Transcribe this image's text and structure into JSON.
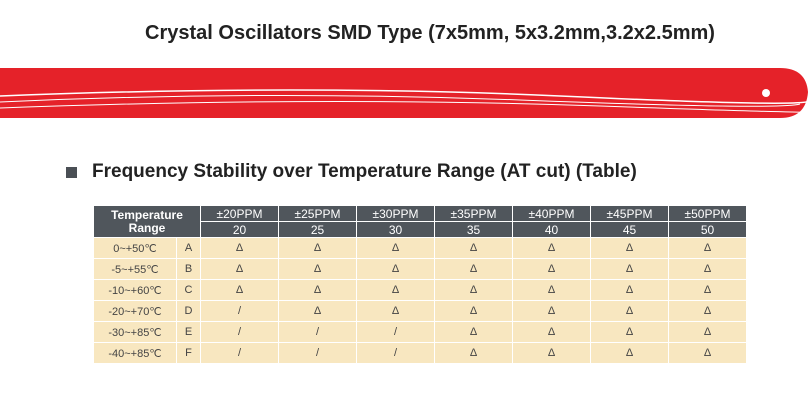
{
  "header": {
    "title": "Crystal Oscillators SMD Type (7x5mm, 5x3.2mm,3.2x2.5mm)"
  },
  "section": {
    "title": "Frequency Stability over Temperature Range (AT cut) (Table)"
  },
  "table": {
    "corner": "Temperature Range",
    "columns": [
      {
        "label": "±20PPM",
        "value": "20"
      },
      {
        "label": "±25PPM",
        "value": "25"
      },
      {
        "label": "±30PPM",
        "value": "30"
      },
      {
        "label": "±35PPM",
        "value": "35"
      },
      {
        "label": "±40PPM",
        "value": "40"
      },
      {
        "label": "±45PPM",
        "value": "45"
      },
      {
        "label": "±50PPM",
        "value": "50"
      }
    ],
    "rows": [
      {
        "range": "0~+50℃",
        "code": "A",
        "cells": [
          "Δ",
          "Δ",
          "Δ",
          "Δ",
          "Δ",
          "Δ",
          "Δ"
        ]
      },
      {
        "range": "-5~+55℃",
        "code": "B",
        "cells": [
          "Δ",
          "Δ",
          "Δ",
          "Δ",
          "Δ",
          "Δ",
          "Δ"
        ]
      },
      {
        "range": "-10~+60℃",
        "code": "C",
        "cells": [
          "Δ",
          "Δ",
          "Δ",
          "Δ",
          "Δ",
          "Δ",
          "Δ"
        ]
      },
      {
        "range": "-20~+70℃",
        "code": "D",
        "cells": [
          "/",
          "Δ",
          "Δ",
          "Δ",
          "Δ",
          "Δ",
          "Δ"
        ]
      },
      {
        "range": "-30~+85℃",
        "code": "E",
        "cells": [
          "/",
          "/",
          "/",
          "Δ",
          "Δ",
          "Δ",
          "Δ"
        ]
      },
      {
        "range": "-40~+85℃",
        "code": "F",
        "cells": [
          "/",
          "/",
          "/",
          "Δ",
          "Δ",
          "Δ",
          "Δ"
        ]
      }
    ]
  }
}
